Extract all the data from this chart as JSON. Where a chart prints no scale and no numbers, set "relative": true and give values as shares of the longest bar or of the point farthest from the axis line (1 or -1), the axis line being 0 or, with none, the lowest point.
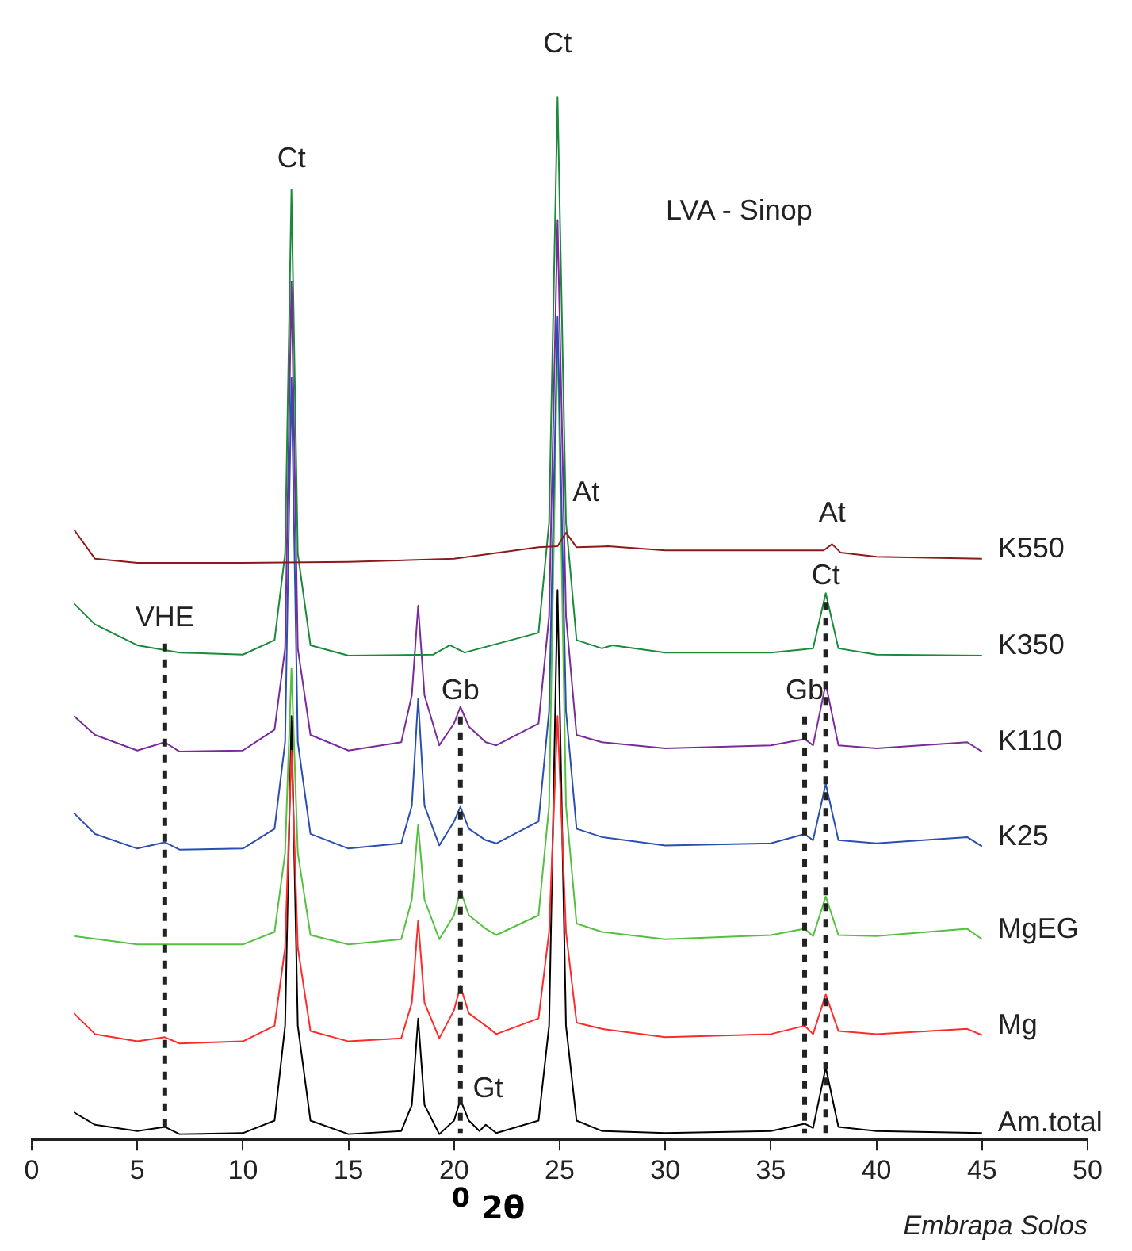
{
  "chart_data": {
    "type": "line",
    "relative": true,
    "title": "LVA - Sinop",
    "xlabel": "$^{0}$ 2θ",
    "xlim": [
      0,
      50
    ],
    "xticks": [
      0,
      5,
      10,
      15,
      20,
      25,
      30,
      35,
      40,
      45,
      50
    ],
    "grid": false,
    "legend": false,
    "series": [
      {
        "name": "K550",
        "color": "#8b1a1a",
        "x": [
          2,
          3,
          5,
          10,
          15,
          20,
          24,
          24.9,
          25.3,
          25.8,
          27.3,
          30,
          35,
          37.5,
          37.9,
          38.3,
          40,
          45
        ],
        "values": [
          0.585,
          0.557,
          0.553,
          0.553,
          0.554,
          0.557,
          0.568,
          0.569,
          0.582,
          0.568,
          0.569,
          0.565,
          0.565,
          0.565,
          0.571,
          0.563,
          0.559,
          0.557
        ]
      },
      {
        "name": "K350",
        "color": "#1a8a3a",
        "x": [
          2,
          3,
          5,
          7,
          10,
          11.5,
          12,
          12.3,
          12.6,
          13.2,
          15,
          19,
          19.8,
          20.5,
          24,
          24.5,
          24.9,
          25.3,
          25.8,
          27,
          27.5,
          30,
          35,
          37,
          37.6,
          38.2,
          40,
          45
        ],
        "values": [
          0.514,
          0.494,
          0.474,
          0.467,
          0.465,
          0.479,
          0.562,
          0.911,
          0.562,
          0.474,
          0.464,
          0.465,
          0.474,
          0.467,
          0.486,
          0.592,
          1,
          0.592,
          0.479,
          0.471,
          0.474,
          0.467,
          0.467,
          0.471,
          0.524,
          0.471,
          0.465,
          0.464
        ]
      },
      {
        "name": "K110",
        "color": "#7b2a9b",
        "x": [
          2,
          3,
          5,
          6.3,
          7,
          10,
          11.5,
          12,
          12.3,
          12.6,
          13.2,
          15,
          17.5,
          18,
          18.3,
          18.6,
          19.3,
          20,
          20.3,
          20.7,
          21.5,
          22,
          24,
          24.5,
          24.9,
          25.3,
          25.8,
          27,
          30,
          35,
          36.6,
          37,
          37.6,
          38.2,
          40,
          44.3,
          45
        ],
        "values": [
          0.406,
          0.388,
          0.373,
          0.381,
          0.372,
          0.373,
          0.393,
          0.471,
          0.823,
          0.471,
          0.388,
          0.373,
          0.381,
          0.426,
          0.512,
          0.426,
          0.378,
          0.399,
          0.415,
          0.396,
          0.381,
          0.378,
          0.399,
          0.502,
          0.882,
          0.502,
          0.388,
          0.381,
          0.375,
          0.378,
          0.384,
          0.378,
          0.437,
          0.378,
          0.375,
          0.381,
          0.372
        ]
      },
      {
        "name": "K25",
        "color": "#2a4fb0",
        "x": [
          2,
          3,
          5,
          6.3,
          7,
          10,
          11.5,
          12,
          12.3,
          12.6,
          13.2,
          15,
          17.5,
          18,
          18.3,
          18.6,
          19.3,
          20,
          20.3,
          20.7,
          21.5,
          22,
          24,
          24.5,
          24.9,
          25.3,
          25.8,
          27,
          30,
          35,
          36.6,
          37,
          37.6,
          38.2,
          40,
          44.3,
          45
        ],
        "values": [
          0.313,
          0.293,
          0.279,
          0.285,
          0.278,
          0.279,
          0.298,
          0.381,
          0.731,
          0.381,
          0.293,
          0.279,
          0.284,
          0.32,
          0.423,
          0.32,
          0.282,
          0.305,
          0.319,
          0.298,
          0.287,
          0.284,
          0.305,
          0.411,
          0.789,
          0.411,
          0.298,
          0.29,
          0.282,
          0.284,
          0.293,
          0.287,
          0.341,
          0.287,
          0.284,
          0.29,
          0.281
        ]
      },
      {
        "name": "MgEG",
        "color": "#55c040",
        "x": [
          2,
          5,
          10,
          11.5,
          12,
          12.3,
          12.6,
          13.2,
          15,
          17.5,
          18,
          18.3,
          18.6,
          19.3,
          20,
          20.3,
          20.7,
          21.5,
          22,
          24,
          24.5,
          24.9,
          25.3,
          25.8,
          27,
          30,
          35,
          36.6,
          37,
          37.6,
          38.2,
          40,
          44.3,
          45
        ],
        "values": [
          0.195,
          0.187,
          0.187,
          0.199,
          0.275,
          0.452,
          0.275,
          0.196,
          0.187,
          0.192,
          0.23,
          0.302,
          0.23,
          0.192,
          0.215,
          0.239,
          0.215,
          0.202,
          0.196,
          0.215,
          0.32,
          0.773,
          0.32,
          0.207,
          0.199,
          0.192,
          0.196,
          0.202,
          0.195,
          0.233,
          0.196,
          0.195,
          0.202,
          0.192
        ]
      },
      {
        "name": "Mg",
        "color": "#ff2a2a",
        "x": [
          2,
          3,
          5,
          6.3,
          7,
          10,
          11.5,
          12,
          12.3,
          12.6,
          13.2,
          15,
          17.5,
          18,
          18.3,
          18.6,
          19.3,
          20,
          20.3,
          20.7,
          21.5,
          22,
          24,
          24.5,
          24.9,
          25.3,
          25.8,
          27,
          30,
          35,
          36.6,
          37,
          37.6,
          38.2,
          40,
          44.3,
          45
        ],
        "values": [
          0.121,
          0.101,
          0.094,
          0.098,
          0.092,
          0.094,
          0.109,
          0.184,
          0.373,
          0.184,
          0.104,
          0.094,
          0.097,
          0.131,
          0.21,
          0.131,
          0.097,
          0.124,
          0.147,
          0.121,
          0.109,
          0.101,
          0.116,
          0.199,
          0.406,
          0.199,
          0.112,
          0.106,
          0.098,
          0.101,
          0.109,
          0.101,
          0.139,
          0.104,
          0.101,
          0.106,
          0.1
        ]
      },
      {
        "name": "Am.total",
        "color": "#000000",
        "x": [
          2,
          3,
          5,
          6.3,
          7,
          10,
          11.5,
          12,
          12.3,
          12.6,
          13.2,
          15,
          17.5,
          18,
          18.3,
          18.6,
          19.3,
          20,
          20.3,
          20.7,
          21.2,
          21.5,
          22,
          24,
          24.5,
          24.9,
          25.3,
          25.8,
          27,
          30,
          35,
          36.6,
          37,
          37.6,
          38.2,
          40,
          45
        ],
        "values": [
          0.026,
          0.014,
          0.008,
          0.012,
          0.005,
          0.006,
          0.018,
          0.109,
          0.406,
          0.109,
          0.018,
          0.005,
          0.008,
          0.033,
          0.116,
          0.033,
          0.005,
          0.018,
          0.038,
          0.018,
          0.008,
          0.014,
          0.006,
          0.018,
          0.109,
          0.527,
          0.109,
          0.018,
          0.008,
          0.006,
          0.008,
          0.015,
          0.011,
          0.069,
          0.012,
          0.008,
          0.006
        ]
      }
    ],
    "ref_lines": [
      {
        "axis": "x",
        "value": 6.3,
        "label": "VHE",
        "line_style": "dashed",
        "color": "#222222"
      },
      {
        "axis": "x",
        "value": 20.3,
        "label": "Gb",
        "line_style": "dashed",
        "color": "#222222"
      },
      {
        "axis": "x",
        "value": 36.6,
        "label": "Gb",
        "line_style": "dashed",
        "color": "#222222"
      },
      {
        "axis": "x",
        "value": 37.6,
        "label": "Ct",
        "line_style": "dashed",
        "color": "#222222"
      }
    ],
    "annotations": [
      "Ct",
      "Ct",
      "At",
      "At",
      "Gt",
      "Embrapa Solos"
    ]
  }
}
